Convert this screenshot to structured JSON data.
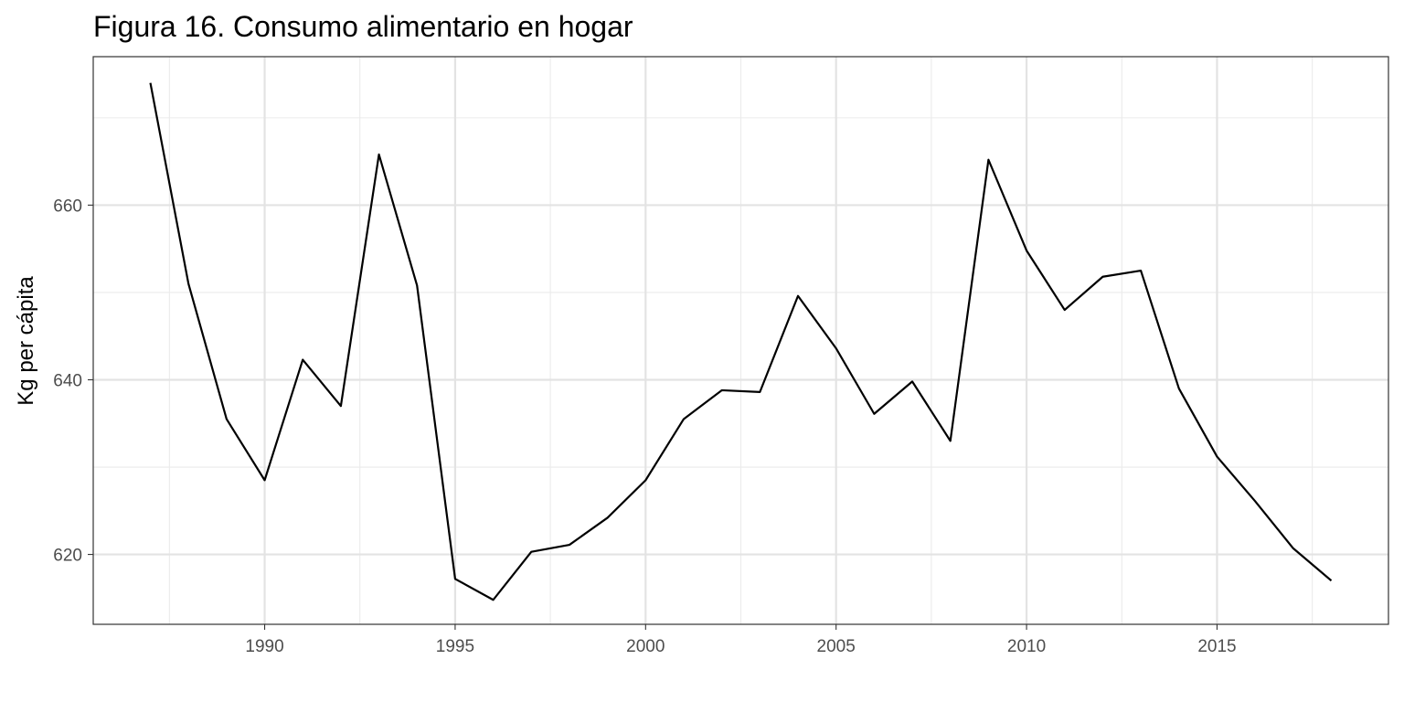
{
  "chart_data": {
    "type": "line",
    "title": "Figura 16. Consumo alimentario en hogar",
    "xlabel": "",
    "ylabel": "Kg per cápita",
    "xlim": [
      1985.5,
      2019.5
    ],
    "ylim": [
      612,
      677
    ],
    "x_ticks": [
      1990,
      1995,
      2000,
      2005,
      2010,
      2015
    ],
    "x_tick_labels": [
      "1990",
      "1995",
      "2000",
      "2005",
      "2010",
      "2015"
    ],
    "y_ticks": [
      620,
      640,
      660
    ],
    "y_tick_labels": [
      "620",
      "640",
      "660"
    ],
    "grid": true,
    "line_color": "#000000",
    "series": [
      {
        "x": [
          1987,
          1988,
          1989,
          1990,
          1991,
          1992,
          1993,
          1994,
          1995,
          1996,
          1997,
          1998,
          1999,
          2000,
          2001,
          2002,
          2003,
          2004,
          2005,
          2006,
          2007,
          2008,
          2009,
          2010,
          2011,
          2012,
          2013,
          2014,
          2015,
          2016,
          2017,
          2018
        ],
        "values": [
          674.0,
          651.0,
          635.5,
          628.5,
          642.3,
          637.0,
          665.8,
          650.8,
          617.2,
          614.8,
          620.3,
          621.1,
          624.2,
          628.5,
          635.5,
          638.8,
          638.6,
          649.6,
          643.6,
          636.1,
          639.8,
          633.0,
          665.2,
          654.8,
          648.0,
          651.8,
          652.5,
          639.0,
          631.2,
          626.1,
          620.7,
          617.0
        ]
      }
    ]
  }
}
